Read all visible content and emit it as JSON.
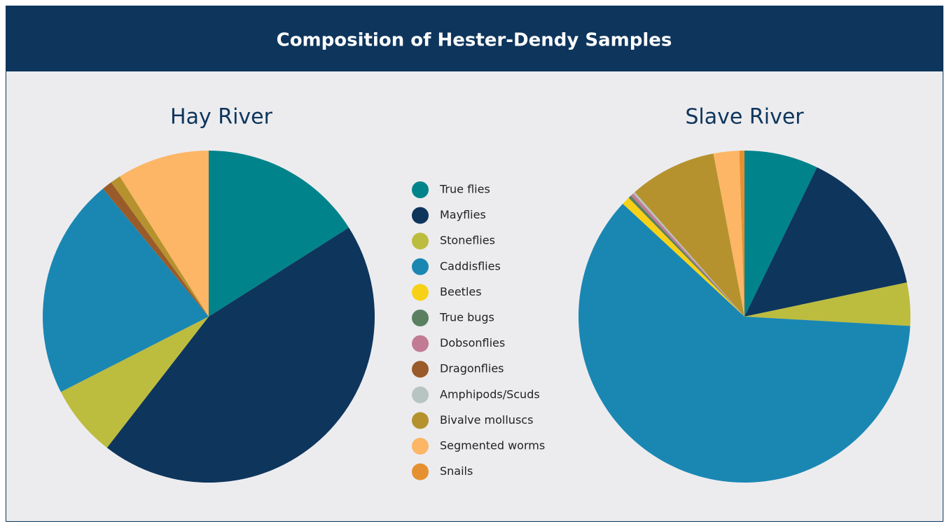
{
  "title": "Composition of Hester-Dendy Samples",
  "chart_data": [
    {
      "type": "pie",
      "title": "Hay River",
      "categories": [
        "True flies",
        "Mayflies",
        "Stoneflies",
        "Caddisflies",
        "Beetles",
        "True bugs",
        "Dobsonflies",
        "Dragonflies",
        "Amphipods/Scuds",
        "Bivalve molluscs",
        "Segmented worms",
        "Snails"
      ],
      "values": [
        16,
        44.5,
        7,
        21.5,
        0,
        0,
        0,
        1,
        0,
        1,
        9,
        0
      ],
      "colors": [
        "#00838a",
        "#0e355c",
        "#bcbc3e",
        "#1a87b3",
        "#f7d117",
        "#5a8061",
        "#c37b94",
        "#9a5b2a",
        "#b7c4c2",
        "#b5922e",
        "#fcb665",
        "#e59030"
      ]
    },
    {
      "type": "pie",
      "title": "Slave River",
      "categories": [
        "True flies",
        "Mayflies",
        "Stoneflies",
        "Caddisflies",
        "Beetles",
        "True bugs",
        "Dobsonflies",
        "Dragonflies",
        "Amphipods/Scuds",
        "Bivalve molluscs",
        "Segmented worms",
        "Snails"
      ],
      "values": [
        7.2,
        14.5,
        4.2,
        61,
        0.8,
        0.3,
        0.3,
        0,
        0.2,
        8.5,
        2.5,
        0.5
      ],
      "colors": [
        "#00838a",
        "#0e355c",
        "#bcbc3e",
        "#1a87b3",
        "#f7d117",
        "#5a8061",
        "#c37b94",
        "#9a5b2a",
        "#b7c4c2",
        "#b5922e",
        "#fcb665",
        "#e59030"
      ]
    }
  ]
}
